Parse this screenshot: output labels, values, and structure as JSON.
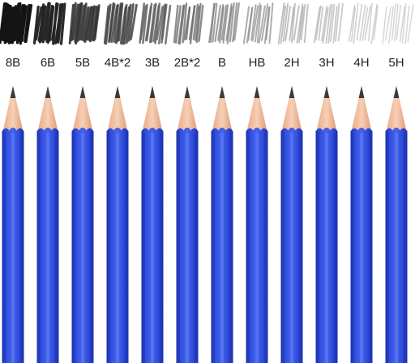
{
  "pencils": [
    {
      "grade": "8B",
      "darkness": 1.0
    },
    {
      "grade": "6B",
      "darkness": 0.92
    },
    {
      "grade": "5B",
      "darkness": 0.82
    },
    {
      "grade": "4B*2",
      "darkness": 0.74
    },
    {
      "grade": "3B",
      "darkness": 0.62
    },
    {
      "grade": "2B*2",
      "darkness": 0.55
    },
    {
      "grade": "B",
      "darkness": 0.45
    },
    {
      "grade": "HB",
      "darkness": 0.38
    },
    {
      "grade": "2H",
      "darkness": 0.3
    },
    {
      "grade": "3H",
      "darkness": 0.24
    },
    {
      "grade": "4H",
      "darkness": 0.18
    },
    {
      "grade": "5H",
      "darkness": 0.14
    }
  ],
  "colors": {
    "background": "#ffffff",
    "body_light": "#3f5de8",
    "body_mid": "#2a45d6",
    "body_dark": "#1a2fa8",
    "wood": "#f4c3a5",
    "wood_shadow": "#d99a7c",
    "graphite": "#3a3a3a",
    "label": "#222222"
  }
}
